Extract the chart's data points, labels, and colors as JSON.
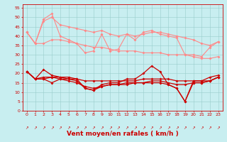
{
  "x": [
    0,
    1,
    2,
    3,
    4,
    5,
    6,
    7,
    8,
    9,
    10,
    11,
    12,
    13,
    14,
    15,
    16,
    17,
    18,
    19,
    20,
    21,
    22,
    23
  ],
  "series": [
    {
      "name": "rafales_max",
      "color": "#ff8888",
      "linewidth": 0.8,
      "markersize": 2.0,
      "values": [
        42,
        36,
        49,
        52,
        40,
        38,
        36,
        31,
        32,
        41,
        32,
        33,
        41,
        38,
        42,
        43,
        41,
        40,
        39,
        30,
        30,
        29,
        34,
        37
      ]
    },
    {
      "name": "rafales_upper",
      "color": "#ff8888",
      "linewidth": 0.8,
      "markersize": 2.0,
      "values": [
        42,
        36,
        48,
        50,
        46,
        45,
        44,
        43,
        42,
        43,
        41,
        40,
        41,
        40,
        41,
        42,
        42,
        41,
        40,
        39,
        38,
        36,
        35,
        37
      ]
    },
    {
      "name": "rafales_lower",
      "color": "#ff8888",
      "linewidth": 0.8,
      "markersize": 2.0,
      "values": [
        42,
        36,
        36,
        38,
        38,
        37,
        36,
        35,
        34,
        34,
        33,
        32,
        32,
        32,
        31,
        31,
        31,
        30,
        30,
        30,
        29,
        28,
        28,
        29
      ]
    },
    {
      "name": "vent_max",
      "color": "#cc0000",
      "linewidth": 0.9,
      "markersize": 2.0,
      "values": [
        21,
        17,
        22,
        19,
        18,
        18,
        17,
        12,
        11,
        14,
        15,
        15,
        17,
        17,
        20,
        24,
        21,
        14,
        12,
        5,
        16,
        16,
        18,
        19
      ]
    },
    {
      "name": "vent_upper",
      "color": "#cc0000",
      "linewidth": 0.9,
      "markersize": 2.0,
      "values": [
        21,
        17,
        18,
        18,
        18,
        17,
        17,
        16,
        16,
        16,
        16,
        16,
        16,
        16,
        17,
        17,
        17,
        17,
        16,
        16,
        16,
        16,
        16,
        18
      ]
    },
    {
      "name": "vent_lower",
      "color": "#cc0000",
      "linewidth": 0.9,
      "markersize": 2.0,
      "values": [
        21,
        17,
        17,
        18,
        17,
        16,
        15,
        13,
        12,
        13,
        14,
        14,
        15,
        15,
        15,
        16,
        16,
        15,
        14,
        14,
        15,
        15,
        16,
        18
      ]
    },
    {
      "name": "vent_min",
      "color": "#cc0000",
      "linewidth": 0.9,
      "markersize": 2.0,
      "values": [
        21,
        17,
        17,
        15,
        17,
        17,
        16,
        12,
        11,
        13,
        14,
        14,
        14,
        15,
        15,
        15,
        15,
        14,
        12,
        5,
        15,
        15,
        16,
        18
      ]
    }
  ],
  "ylim": [
    0,
    57
  ],
  "yticks": [
    0,
    5,
    10,
    15,
    20,
    25,
    30,
    35,
    40,
    45,
    50,
    55
  ],
  "xlabel": "Vent moyen/en rafales ( km/h )",
  "background_color": "#c8eef0",
  "grid_color": "#99cccc",
  "axis_color": "#cc0000",
  "xlabel_color": "#cc0000",
  "xlabel_fontsize": 6.5,
  "tick_fontsize": 4.5
}
